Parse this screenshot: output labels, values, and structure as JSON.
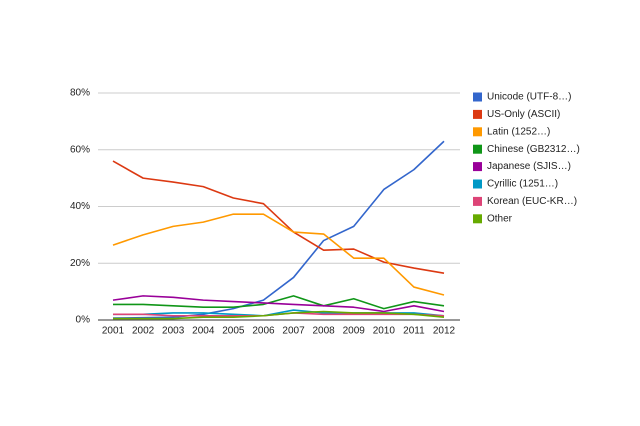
{
  "chart_data": {
    "type": "line",
    "categories": [
      "2001",
      "2002",
      "2003",
      "2004",
      "2005",
      "2006",
      "2007",
      "2008",
      "2009",
      "2010",
      "2011",
      "2012"
    ],
    "series": [
      {
        "name": "Unicode (UTF-8…)",
        "color": "#3366cc",
        "values": [
          0.7,
          0.8,
          1,
          2,
          4,
          7,
          15,
          28,
          33,
          46,
          53,
          63
        ]
      },
      {
        "name": "US-Only (ASCII)",
        "color": "#dc3912",
        "values": [
          56,
          50,
          48.6,
          47,
          43,
          41,
          31,
          24.6,
          25,
          20.4,
          18.3,
          16.5
        ]
      },
      {
        "name": "Latin (1252…)",
        "color": "#ff9900",
        "values": [
          26.4,
          30,
          33,
          34.5,
          37.3,
          37.3,
          31,
          30.3,
          21.8,
          21.8,
          11.6,
          8.8
        ]
      },
      {
        "name": "Chinese (GB2312…)",
        "color": "#109618",
        "values": [
          5.5,
          5.5,
          5,
          4.5,
          4.5,
          5.5,
          8.5,
          5,
          7.5,
          4,
          6.5,
          5
        ]
      },
      {
        "name": "Japanese (SJIS…)",
        "color": "#990099",
        "values": [
          7,
          8.5,
          8,
          7,
          6.5,
          6,
          5.5,
          5,
          4.5,
          3,
          5,
          3
        ]
      },
      {
        "name": "Cyrillic (1251…)",
        "color": "#0099c6",
        "values": [
          2,
          2,
          2.5,
          2.5,
          2,
          1.5,
          3.5,
          2.5,
          2.5,
          2.5,
          2.5,
          1.5
        ]
      },
      {
        "name": "Korean (EUC-KR…)",
        "color": "#dd4477",
        "values": [
          2,
          2,
          1.5,
          1.5,
          1.5,
          1.5,
          2.5,
          2,
          2,
          2,
          2,
          1.5
        ]
      },
      {
        "name": "Other",
        "color": "#66aa00",
        "values": [
          0.5,
          0.5,
          0.5,
          1,
          1,
          1.5,
          2.5,
          3,
          2.5,
          2.5,
          2,
          1
        ]
      }
    ],
    "ylim": [
      0,
      80
    ],
    "yticks": [
      {
        "value": 0,
        "label": "0%"
      },
      {
        "value": 20,
        "label": "20%"
      },
      {
        "value": 40,
        "label": "40%"
      },
      {
        "value": 60,
        "label": "60%"
      },
      {
        "value": 80,
        "label": "80%"
      }
    ],
    "grid": true,
    "legend": "right"
  }
}
